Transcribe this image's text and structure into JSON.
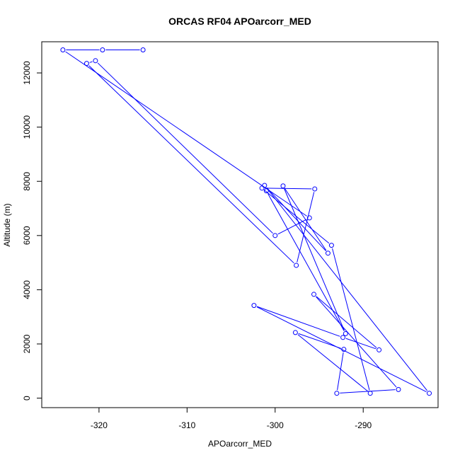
{
  "chart_data": {
    "type": "line",
    "title": "ORCAS RF04 APOarcorr_MED",
    "xlabel": "APOarcorr_MED",
    "ylabel": "Altitude (m)",
    "xlim": [
      -326.5,
      -281.5
    ],
    "ylim": [
      -350,
      13150
    ],
    "x_ticks": [
      -320,
      -310,
      -300,
      -290
    ],
    "y_ticks": [
      0,
      2000,
      4000,
      6000,
      8000,
      10000,
      12000
    ],
    "x_tick_labels": [
      "-320",
      "-310",
      "-300",
      "-290"
    ],
    "y_tick_labels": [
      "0",
      "2000",
      "4000",
      "6000",
      "8000",
      "10000",
      "12000"
    ],
    "grid": false,
    "legend": "none",
    "series": [
      {
        "color": "#0000ff",
        "marker": "open-circle",
        "x": [
          -315.0,
          -319.6,
          -324.1,
          -296.1,
          -300.0,
          -320.4,
          -321.4,
          -297.6,
          -295.5,
          -301.5,
          -293.6,
          -289.2,
          -297.7,
          -292.2,
          -293.0,
          -286.0,
          -295.6,
          -288.2,
          -292.3,
          -302.4,
          -282.5,
          -301.2,
          -294.0,
          -299.1,
          -292.0,
          -301.0
        ],
        "y": [
          12850,
          12850,
          12850,
          6650,
          6000,
          12450,
          12350,
          4900,
          7720,
          7750,
          5640,
          180,
          2420,
          1800,
          180,
          320,
          3830,
          1780,
          2240,
          3420,
          180,
          7850,
          5350,
          7830,
          2380,
          7650
        ]
      }
    ]
  }
}
